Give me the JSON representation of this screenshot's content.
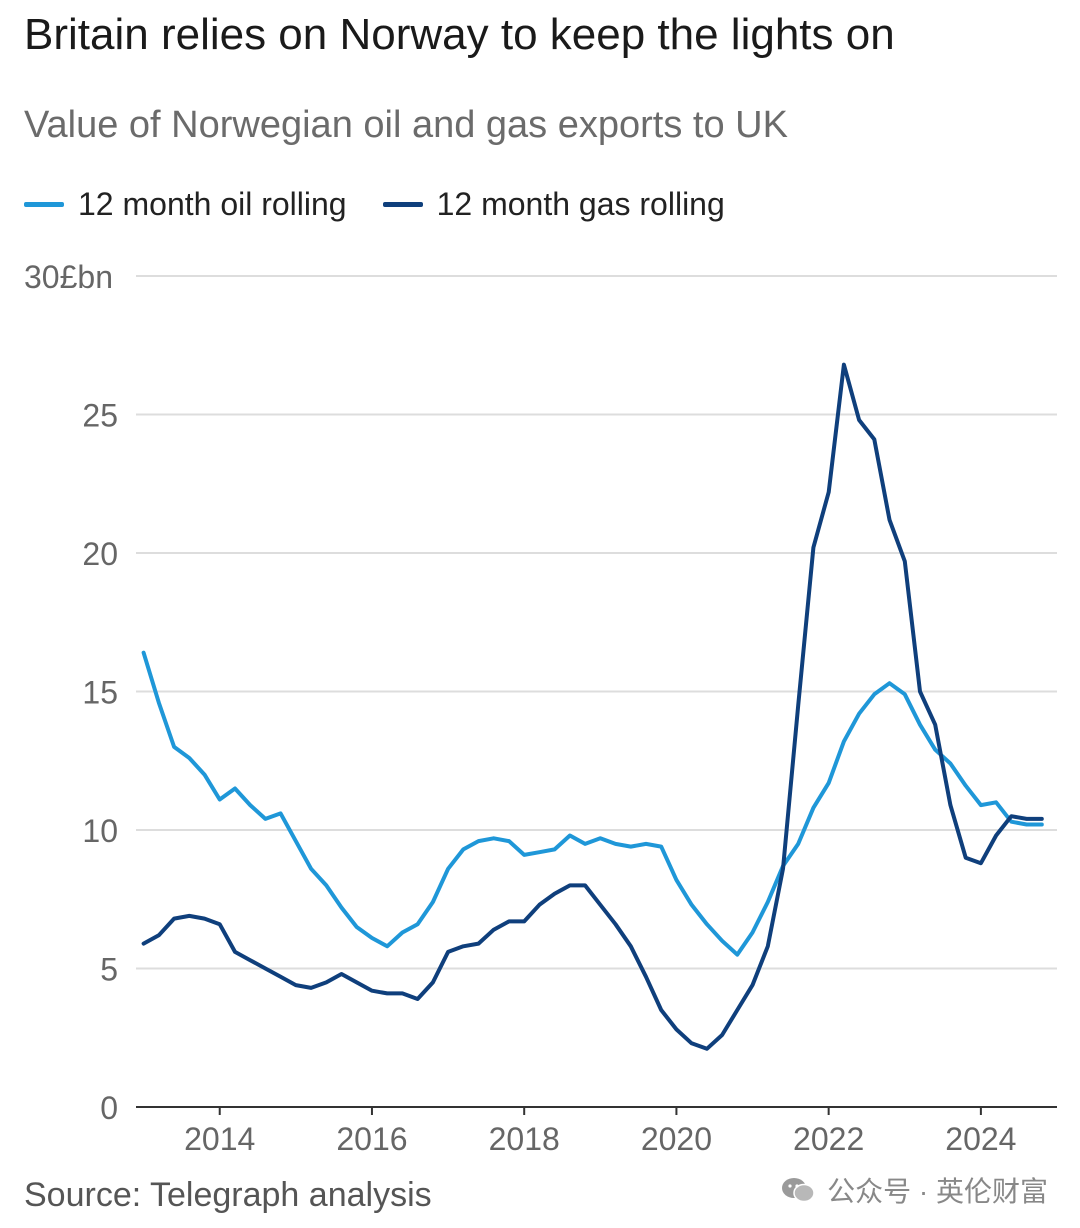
{
  "title": "Britain relies on Norway to keep the lights on",
  "subtitle": "Value of Norwegian oil and gas exports to UK",
  "source": "Source: Telegraph analysis",
  "watermark": "公众号 · 英伦财富",
  "colors": {
    "oil": "#1f97d8",
    "gas": "#0f3f7c",
    "grid": "#dddddd",
    "axis": "#333333",
    "tick": "#666666"
  },
  "chart_data": {
    "type": "line",
    "title": "Britain relies on Norway to keep the lights on",
    "subtitle": "Value of Norwegian oil and gas exports to UK",
    "ylabel": "",
    "y_unit_label": "£bn",
    "ylim": [
      0,
      30
    ],
    "xlim": [
      2012.9,
      2025.0
    ],
    "yticks": [
      "0",
      "5",
      "10",
      "15",
      "20",
      "25",
      "30"
    ],
    "xticks": [
      "2014",
      "2016",
      "2018",
      "2020",
      "2022",
      "2024"
    ],
    "grid": true,
    "legend_position": "top-left",
    "series": [
      {
        "name": "12 month oil rolling",
        "color": "#1f97d8",
        "x": [
          2013.0,
          2013.2,
          2013.4,
          2013.6,
          2013.8,
          2014.0,
          2014.2,
          2014.4,
          2014.6,
          2014.8,
          2015.0,
          2015.2,
          2015.4,
          2015.6,
          2015.8,
          2016.0,
          2016.2,
          2016.4,
          2016.6,
          2016.8,
          2017.0,
          2017.2,
          2017.4,
          2017.6,
          2017.8,
          2018.0,
          2018.2,
          2018.4,
          2018.6,
          2018.8,
          2019.0,
          2019.2,
          2019.4,
          2019.6,
          2019.8,
          2020.0,
          2020.2,
          2020.4,
          2020.6,
          2020.8,
          2021.0,
          2021.2,
          2021.4,
          2021.6,
          2021.8,
          2022.0,
          2022.2,
          2022.4,
          2022.6,
          2022.8,
          2023.0,
          2023.2,
          2023.4,
          2023.6,
          2023.8,
          2024.0,
          2024.2,
          2024.4,
          2024.6,
          2024.8
        ],
        "values": [
          16.4,
          14.6,
          13.0,
          12.6,
          12.0,
          11.1,
          11.5,
          10.9,
          10.4,
          10.6,
          9.6,
          8.6,
          8.0,
          7.2,
          6.5,
          6.1,
          5.8,
          6.3,
          6.6,
          7.4,
          8.6,
          9.3,
          9.6,
          9.7,
          9.6,
          9.1,
          9.2,
          9.3,
          9.8,
          9.5,
          9.7,
          9.5,
          9.4,
          9.5,
          9.4,
          8.2,
          7.3,
          6.6,
          6.0,
          5.5,
          6.3,
          7.4,
          8.7,
          9.5,
          10.8,
          11.7,
          13.2,
          14.2,
          14.9,
          15.3,
          14.9,
          13.8,
          12.9,
          12.4,
          11.6,
          10.9,
          11.0,
          10.3,
          10.2,
          10.2
        ]
      },
      {
        "name": "12 month gas rolling",
        "color": "#0f3f7c",
        "x": [
          2013.0,
          2013.2,
          2013.4,
          2013.6,
          2013.8,
          2014.0,
          2014.2,
          2014.4,
          2014.6,
          2014.8,
          2015.0,
          2015.2,
          2015.4,
          2015.6,
          2015.8,
          2016.0,
          2016.2,
          2016.4,
          2016.6,
          2016.8,
          2017.0,
          2017.2,
          2017.4,
          2017.6,
          2017.8,
          2018.0,
          2018.2,
          2018.4,
          2018.6,
          2018.8,
          2019.0,
          2019.2,
          2019.4,
          2019.6,
          2019.8,
          2020.0,
          2020.2,
          2020.4,
          2020.6,
          2020.8,
          2021.0,
          2021.2,
          2021.4,
          2021.6,
          2021.8,
          2022.0,
          2022.2,
          2022.4,
          2022.6,
          2022.8,
          2023.0,
          2023.2,
          2023.4,
          2023.6,
          2023.8,
          2024.0,
          2024.2,
          2024.4,
          2024.6,
          2024.8
        ],
        "values": [
          5.9,
          6.2,
          6.8,
          6.9,
          6.8,
          6.6,
          5.6,
          5.3,
          5.0,
          4.7,
          4.4,
          4.3,
          4.5,
          4.8,
          4.5,
          4.2,
          4.1,
          4.1,
          3.9,
          4.5,
          5.6,
          5.8,
          5.9,
          6.4,
          6.7,
          6.7,
          7.3,
          7.7,
          8.0,
          8.0,
          7.3,
          6.6,
          5.8,
          4.7,
          3.5,
          2.8,
          2.3,
          2.1,
          2.6,
          3.5,
          4.4,
          5.8,
          8.6,
          14.5,
          20.2,
          22.2,
          26.8,
          24.8,
          24.1,
          21.2,
          19.7,
          15.0,
          13.8,
          10.9,
          9.0,
          8.8,
          9.8,
          10.5,
          10.4,
          10.4
        ]
      }
    ]
  }
}
